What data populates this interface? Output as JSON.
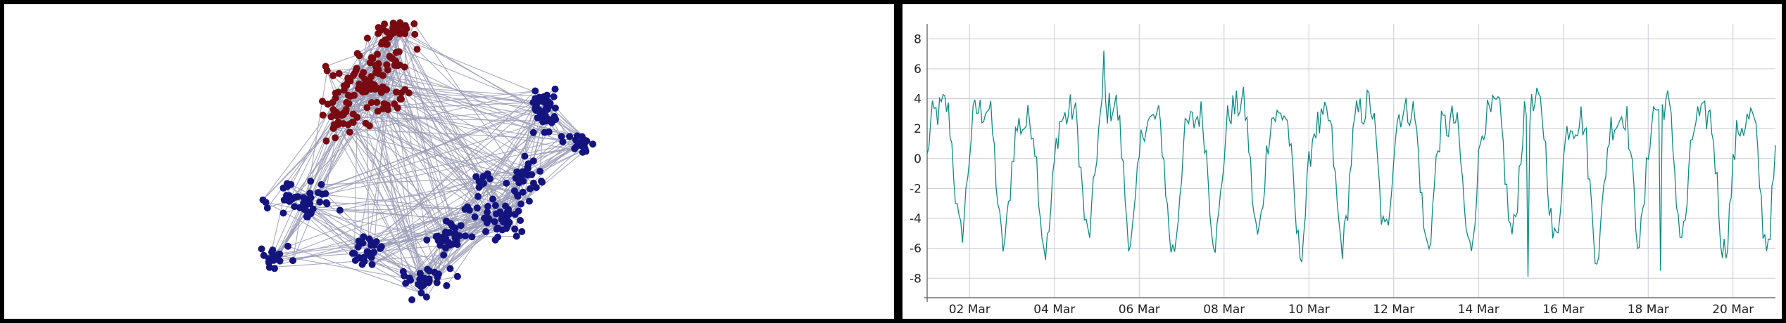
{
  "colors": {
    "frame": "#000000",
    "edge": "#9a9cb6",
    "cluster_a": "#7a0a12",
    "cluster_b": "#14147f",
    "line": "#0f8a84",
    "grid": "#c9ccd6"
  },
  "chart_data": [
    {
      "type": "network",
      "nodes": "approx. 560",
      "clusters": [
        {
          "color": "dark-red",
          "approx_nodes": 160
        },
        {
          "color": "dark-blue",
          "approx_nodes": 400
        }
      ]
    },
    {
      "type": "line",
      "x_start": "01 Mar",
      "x_end": "21 Mar",
      "xticks": [
        "02 Mar",
        "04 Mar",
        "06 Mar",
        "08 Mar",
        "10 Mar",
        "12 Mar",
        "14 Mar",
        "16 Mar",
        "18 Mar",
        "20 Mar"
      ],
      "yticks": [
        8,
        6,
        4,
        2,
        0,
        -2,
        -4,
        -6,
        -8
      ],
      "ylim": [
        -9.3,
        9
      ],
      "grid": true,
      "series": [
        {
          "description": "hourly oscillating signal, ~1 day period, amplitude ~±5",
          "max": 7.2,
          "min": -7.9
        }
      ]
    }
  ]
}
